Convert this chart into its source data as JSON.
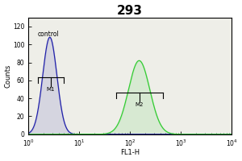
{
  "title": "293",
  "xlabel": "FL1-H",
  "ylabel": "Counts",
  "ylim": [
    0,
    130
  ],
  "yticks": [
    0,
    20,
    40,
    60,
    80,
    100,
    120
  ],
  "xlim": [
    1.0,
    10000.0
  ],
  "control_label": "control",
  "m1_label": "M1",
  "m2_label": "M2",
  "blue_color": "#2222aa",
  "green_color": "#33cc33",
  "bg_color": "#eeeee8",
  "title_fontsize": 11,
  "axis_fontsize": 6,
  "tick_fontsize": 5.5,
  "ctrl_mean_log": 0.42,
  "ctrl_std_log": 0.14,
  "ctrl_height": 108,
  "samp_mean_log": 2.18,
  "samp_std_log": 0.21,
  "samp_height": 82
}
